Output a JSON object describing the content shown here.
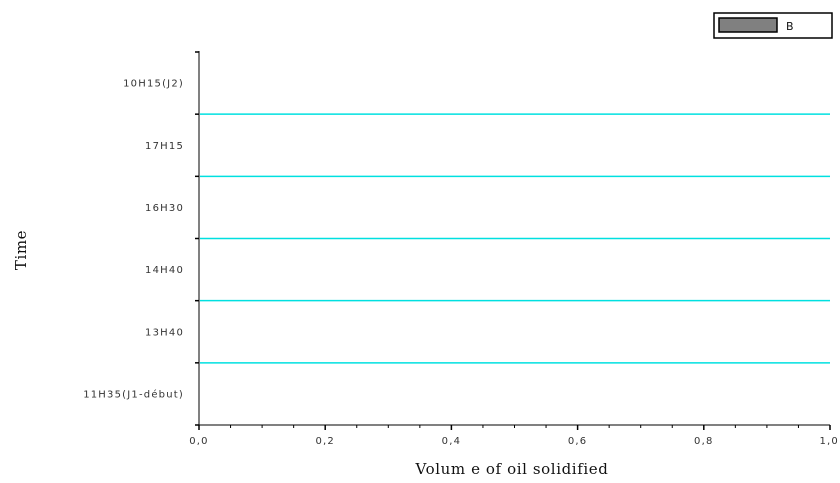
{
  "chart_data": {
    "type": "bar",
    "orientation": "horizontal",
    "categories": [
      "11H35(J1-début)",
      "13H40",
      "14H40",
      "16H30",
      "17H15",
      "10H15(J2)"
    ],
    "series": [
      {
        "name": "B",
        "values": [
          0,
          0,
          0,
          0,
          0,
          0
        ]
      }
    ],
    "xlabel": "Volum e of oil solidified",
    "ylabel": "Time",
    "xlim": [
      0,
      1
    ],
    "xticks": [
      "0,0",
      "0,2",
      "0,4",
      "0,6",
      "0,8",
      "1,0"
    ],
    "grid": "horizontal separators between categories",
    "gridline_color": "#00e0e0",
    "bar_fill_color": "#808080",
    "legend_placement": "top-right"
  }
}
